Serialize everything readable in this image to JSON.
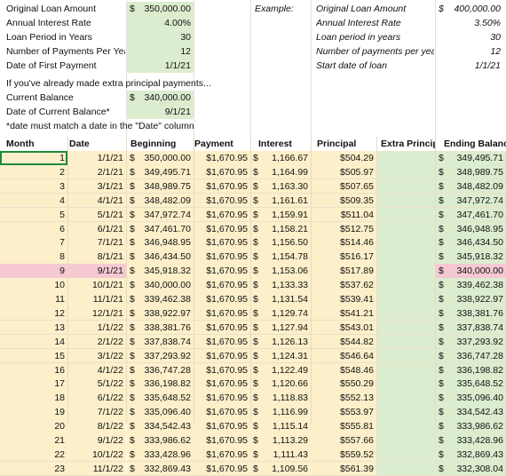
{
  "inputs": {
    "original_loan_label": "Original Loan Amount",
    "original_loan_sym": "$",
    "original_loan_value": "350,000.00",
    "rate_label": "Annual Interest Rate",
    "rate_value": "4.00%",
    "period_label": "Loan Period in Years",
    "period_value": "30",
    "payments_label": "Number of Payments Per Year",
    "payments_value": "12",
    "first_payment_label": "Date of First Payment",
    "first_payment_value": "1/1/21"
  },
  "example": {
    "title": "Example:",
    "original_loan_label": "Original Loan Amount",
    "original_loan_sym": "$",
    "original_loan_value": "400,000.00",
    "rate_label": "Annual Interest Rate",
    "rate_value": "3.50%",
    "period_label": "Loan period in years",
    "period_value": "30",
    "payments_label": "Number of payments per year",
    "payments_value": "12",
    "start_label": "Start date of loan",
    "start_value": "1/1/21"
  },
  "extra": {
    "note": "If you've already made extra principal payments...",
    "current_balance_label": "Current Balance",
    "current_balance_sym": "$",
    "current_balance_value": "340,000.00",
    "current_date_label": "Date of Current Balance*",
    "current_date_value": "9/1/21",
    "footnote": "*date must match a date in the \"Date\" column"
  },
  "table": {
    "headers": [
      "Month",
      "Date",
      "Beginning",
      "Payment",
      "Interest",
      "Principal",
      "Extra Principal",
      "Ending Balance"
    ],
    "highlight_month": "9",
    "rows": [
      [
        "1",
        "1/1/21",
        "350,000.00",
        "$1,670.95",
        "1,166.67",
        "$504.29",
        "349,495.71"
      ],
      [
        "2",
        "2/1/21",
        "349,495.71",
        "$1,670.95",
        "1,164.99",
        "$505.97",
        "348,989.75"
      ],
      [
        "3",
        "3/1/21",
        "348,989.75",
        "$1,670.95",
        "1,163.30",
        "$507.65",
        "348,482.09"
      ],
      [
        "4",
        "4/1/21",
        "348,482.09",
        "$1,670.95",
        "1,161.61",
        "$509.35",
        "347,972.74"
      ],
      [
        "5",
        "5/1/21",
        "347,972.74",
        "$1,670.95",
        "1,159.91",
        "$511.04",
        "347,461.70"
      ],
      [
        "6",
        "6/1/21",
        "347,461.70",
        "$1,670.95",
        "1,158.21",
        "$512.75",
        "346,948.95"
      ],
      [
        "7",
        "7/1/21",
        "346,948.95",
        "$1,670.95",
        "1,156.50",
        "$514.46",
        "346,434.50"
      ],
      [
        "8",
        "8/1/21",
        "346,434.50",
        "$1,670.95",
        "1,154.78",
        "$516.17",
        "345,918.32"
      ],
      [
        "9",
        "9/1/21",
        "345,918.32",
        "$1,670.95",
        "1,153.06",
        "$517.89",
        "340,000.00"
      ],
      [
        "10",
        "10/1/21",
        "340,000.00",
        "$1,670.95",
        "1,133.33",
        "$537.62",
        "339,462.38"
      ],
      [
        "11",
        "11/1/21",
        "339,462.38",
        "$1,670.95",
        "1,131.54",
        "$539.41",
        "338,922.97"
      ],
      [
        "12",
        "12/1/21",
        "338,922.97",
        "$1,670.95",
        "1,129.74",
        "$541.21",
        "338,381.76"
      ],
      [
        "13",
        "1/1/22",
        "338,381.76",
        "$1,670.95",
        "1,127.94",
        "$543.01",
        "337,838.74"
      ],
      [
        "14",
        "2/1/22",
        "337,838.74",
        "$1,670.95",
        "1,126.13",
        "$544.82",
        "337,293.92"
      ],
      [
        "15",
        "3/1/22",
        "337,293.92",
        "$1,670.95",
        "1,124.31",
        "$546.64",
        "336,747.28"
      ],
      [
        "16",
        "4/1/22",
        "336,747.28",
        "$1,670.95",
        "1,122.49",
        "$548.46",
        "336,198.82"
      ],
      [
        "17",
        "5/1/22",
        "336,198.82",
        "$1,670.95",
        "1,120.66",
        "$550.29",
        "335,648.52"
      ],
      [
        "18",
        "6/1/22",
        "335,648.52",
        "$1,670.95",
        "1,118.83",
        "$552.13",
        "335,096.40"
      ],
      [
        "19",
        "7/1/22",
        "335,096.40",
        "$1,670.95",
        "1,116.99",
        "$553.97",
        "334,542.43"
      ],
      [
        "20",
        "8/1/22",
        "334,542.43",
        "$1,670.95",
        "1,115.14",
        "$555.81",
        "333,986.62"
      ],
      [
        "21",
        "9/1/22",
        "333,986.62",
        "$1,670.95",
        "1,113.29",
        "$557.66",
        "333,428.96"
      ],
      [
        "22",
        "10/1/22",
        "333,428.96",
        "$1,670.95",
        "1,111.43",
        "$559.52",
        "332,869.43"
      ],
      [
        "23",
        "11/1/22",
        "332,869.43",
        "$1,670.95",
        "1,109.56",
        "$561.39",
        "332,308.04"
      ]
    ]
  }
}
